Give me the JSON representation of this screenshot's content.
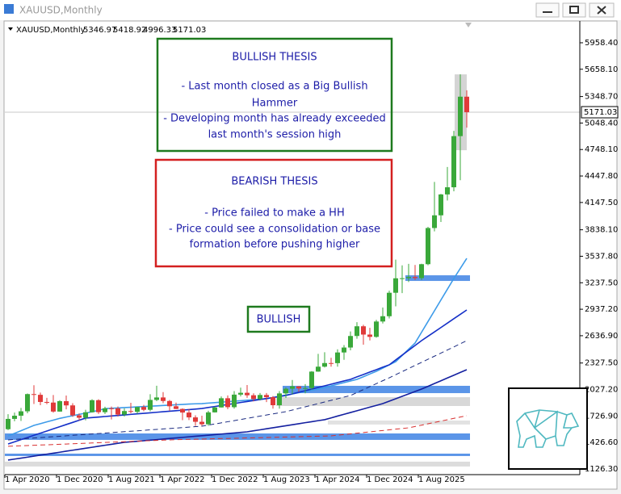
{
  "window_title": "XAUUSD,Monthly",
  "chart_data": {
    "type": "candlestick",
    "title": "XAUUSD,Monthly",
    "categories": [
      "1 Apr 2020",
      null,
      null,
      null,
      null,
      null,
      null,
      null,
      "1 Dec 2020",
      null,
      null,
      null,
      null,
      null,
      null,
      null,
      "1 Aug 2021",
      null,
      null,
      null,
      null,
      null,
      null,
      null,
      "1 Apr 2022",
      null,
      null,
      null,
      null,
      null,
      null,
      null,
      "1 Dec 2022",
      null,
      null,
      null,
      null,
      null,
      null,
      null,
      "1 Aug 2023",
      null,
      null,
      null,
      null,
      null,
      null,
      null,
      "1 Apr 2024",
      null,
      null,
      null,
      null,
      null,
      null,
      null,
      "1 Dec 2024",
      null,
      null,
      null,
      null,
      null,
      null,
      null,
      "1 Aug 2025",
      null,
      null,
      null,
      null,
      null,
      null,
      null
    ],
    "open": [
      1577,
      1694,
      1730,
      1780,
      1975,
      1967,
      1886,
      1879,
      1777,
      1895,
      1847,
      1734,
      1707,
      1769,
      1906,
      1770,
      1814,
      1813,
      1743,
      1783,
      1774,
      1829,
      1797,
      1909,
      1937,
      1897,
      1837,
      1807,
      1766,
      1711,
      1661,
      1633,
      1768,
      1824,
      1928,
      1827,
      1969,
      1990,
      1962,
      1919,
      1965,
      1940,
      1849,
      1983,
      2036,
      2063,
      2039,
      2044,
      2230,
      2286,
      2327,
      2326,
      2447,
      2503,
      2634,
      2744,
      2650,
      2624,
      2798,
      2858,
      3124,
      3288,
      3289,
      3303,
      3290,
      3448,
      3858,
      4002,
      4239,
      4320,
      4900,
      5346.97
    ],
    "high": [
      1747,
      1765,
      1818,
      1982,
      2075,
      1992,
      1933,
      1965,
      1906,
      1959,
      1872,
      1755,
      1798,
      1916,
      1917,
      1832,
      1834,
      1834,
      1814,
      1877,
      1831,
      1853,
      1974,
      2070,
      1998,
      1909,
      1879,
      1814,
      1807,
      1735,
      1730,
      1786,
      1833,
      1949,
      1960,
      2009,
      2048,
      2078,
      1984,
      1987,
      1987,
      1953,
      2009,
      2052,
      2135,
      2065,
      2088,
      2236,
      2431,
      2450,
      2387,
      2483,
      2531,
      2685,
      2790,
      2761,
      2726,
      2817,
      2956,
      3148,
      3500,
      3435,
      3452,
      3439,
      3453,
      3872,
      4381,
      4245,
      4550,
      4960,
      5600,
      5418.92
    ],
    "low": [
      1567,
      1667,
      1671,
      1757,
      1863,
      1849,
      1860,
      1764,
      1775,
      1802,
      1717,
      1677,
      1677,
      1766,
      1750,
      1750,
      1688,
      1721,
      1721,
      1758,
      1753,
      1780,
      1780,
      1895,
      1872,
      1786,
      1805,
      1680,
      1681,
      1615,
      1617,
      1616,
      1765,
      1823,
      1804,
      1810,
      1949,
      1932,
      1893,
      1903,
      1885,
      1810,
      1810,
      1931,
      1973,
      2001,
      1984,
      2024,
      2228,
      2277,
      2286,
      2286,
      2364,
      2471,
      2603,
      2536,
      2583,
      2614,
      2776,
      2833,
      2970,
      3120,
      3246,
      3268,
      3268,
      3436,
      3820,
      3927,
      4170,
      4274,
      4400,
      4996.33
    ],
    "close": [
      1694,
      1730,
      1780,
      1975,
      1967,
      1886,
      1879,
      1777,
      1895,
      1847,
      1734,
      1707,
      1769,
      1906,
      1770,
      1814,
      1813,
      1743,
      1783,
      1774,
      1829,
      1797,
      1909,
      1937,
      1897,
      1837,
      1807,
      1766,
      1711,
      1661,
      1633,
      1768,
      1824,
      1928,
      1827,
      1969,
      1990,
      1962,
      1919,
      1965,
      1940,
      1849,
      1983,
      2036,
      2063,
      2039,
      2044,
      2230,
      2286,
      2327,
      2326,
      2447,
      2503,
      2634,
      2744,
      2650,
      2624,
      2798,
      2858,
      3124,
      3288,
      3289,
      3303,
      3290,
      3448,
      3858,
      4002,
      4239,
      4320,
      4900,
      5346.97,
      5171.03
    ],
    "up_color": "#3aa83a",
    "down_color": "#e03a3a",
    "series": [
      {
        "color": "#3d9be9",
        "dash": false,
        "values": [
          1500,
          1530,
          1560,
          1590,
          1620,
          1640,
          1660,
          1680,
          1700,
          1715,
          1730,
          1745,
          1760,
          1775,
          1790,
          1810,
          1814,
          1818,
          1822,
          1826,
          1830,
          1834,
          1838,
          1842,
          1846,
          1850,
          1854,
          1858,
          1862,
          1865,
          1867,
          1873,
          1878,
          1884,
          1889,
          1895,
          1900,
          1906,
          1911,
          1917,
          1922,
          1936,
          1950,
          1964,
          1978,
          1991,
          2005,
          2019,
          2032,
          2050,
          2068,
          2087,
          2105,
          2124,
          2142,
          2172,
          2203,
          2233,
          2270,
          2306,
          2343,
          2413,
          2484,
          2554,
          2676,
          2798,
          2920,
          3042,
          3164,
          3286,
          3400,
          3514
        ]
      },
      {
        "color": "#1530c8",
        "dash": false,
        "values": [
          1410,
          1434,
          1459,
          1483,
          1508,
          1532,
          1556,
          1581,
          1605,
          1630,
          1654,
          1679,
          1703,
          1709,
          1715,
          1721,
          1727,
          1733,
          1739,
          1745,
          1751,
          1757,
          1763,
          1769,
          1775,
          1781,
          1787,
          1793,
          1799,
          1805,
          1812,
          1823,
          1834,
          1846,
          1857,
          1868,
          1880,
          1891,
          1902,
          1914,
          1925,
          1936,
          1948,
          1959,
          1977,
          1996,
          2014,
          2032,
          2051,
          2069,
          2087,
          2106,
          2124,
          2142,
          2170,
          2197,
          2225,
          2252,
          2280,
          2307,
          2362,
          2417,
          2471,
          2526,
          2581,
          2631,
          2680,
          2730,
          2780,
          2830,
          2879,
          2929
        ]
      },
      {
        "color": "#1420a0",
        "dash": false,
        "values": [
          1227,
          1238,
          1249,
          1260,
          1272,
          1283,
          1294,
          1305,
          1316,
          1328,
          1339,
          1350,
          1361,
          1372,
          1384,
          1395,
          1406,
          1417,
          1428,
          1434,
          1440,
          1447,
          1453,
          1459,
          1465,
          1472,
          1478,
          1484,
          1491,
          1497,
          1503,
          1509,
          1516,
          1522,
          1528,
          1534,
          1541,
          1547,
          1559,
          1570,
          1582,
          1593,
          1605,
          1616,
          1628,
          1639,
          1651,
          1662,
          1674,
          1685,
          1705,
          1726,
          1746,
          1766,
          1786,
          1807,
          1827,
          1847,
          1867,
          1895,
          1922,
          1950,
          1977,
          2005,
          2032,
          2063,
          2095,
          2126,
          2158,
          2189,
          2221,
          2252
        ]
      },
      {
        "color": "#1a2a80",
        "dash": true,
        "values": [
          1456,
          1461,
          1466,
          1471,
          1477,
          1482,
          1487,
          1492,
          1497,
          1502,
          1508,
          1513,
          1518,
          1523,
          1528,
          1533,
          1539,
          1544,
          1549,
          1554,
          1559,
          1564,
          1570,
          1575,
          1580,
          1585,
          1590,
          1595,
          1601,
          1606,
          1611,
          1624,
          1636,
          1649,
          1662,
          1674,
          1687,
          1700,
          1713,
          1725,
          1738,
          1751,
          1763,
          1776,
          1794,
          1813,
          1831,
          1849,
          1867,
          1886,
          1904,
          1922,
          1941,
          1959,
          1993,
          2026,
          2060,
          2093,
          2127,
          2160,
          2195,
          2230,
          2265,
          2300,
          2335,
          2370,
          2405,
          2440,
          2475,
          2510,
          2546,
          2581
        ]
      },
      {
        "color": "#d83030",
        "dash": true,
        "values": [
          1383,
          1386,
          1389,
          1392,
          1395,
          1398,
          1400,
          1403,
          1406,
          1409,
          1412,
          1415,
          1418,
          1421,
          1424,
          1427,
          1430,
          1433,
          1435,
          1438,
          1441,
          1444,
          1447,
          1450,
          1453,
          1456,
          1458,
          1460,
          1462,
          1463,
          1465,
          1467,
          1469,
          1471,
          1472,
          1474,
          1476,
          1478,
          1480,
          1481,
          1483,
          1485,
          1487,
          1489,
          1490,
          1492,
          1494,
          1496,
          1498,
          1499,
          1501,
          1509,
          1516,
          1524,
          1532,
          1539,
          1547,
          1555,
          1562,
          1570,
          1578,
          1585,
          1593,
          1608,
          1623,
          1639,
          1654,
          1669,
          1684,
          1700,
          1715,
          1730
        ]
      }
    ],
    "zones": [
      {
        "low": 3258,
        "high": 3322,
        "start": 62,
        "color": "#5b95e8"
      },
      {
        "low": 1986,
        "high": 2069,
        "start": 43,
        "color": "#5b95e8"
      },
      {
        "low": 1840,
        "high": 1940,
        "start": 42,
        "color": "#d8d8d8"
      },
      {
        "low": 1630,
        "high": 1675,
        "start": 50,
        "color": "#e2e2e2"
      },
      {
        "low": 1456,
        "high": 1529,
        "start": 0,
        "color": "#5b95e8"
      },
      {
        "low": 1273,
        "high": 1300,
        "start": 0,
        "color": "#5b95e8"
      },
      {
        "low": 1154,
        "high": 1209,
        "start": 0,
        "color": "#dcdcdc"
      }
    ],
    "highlight": [
      4740,
      5600
    ],
    "ylim": [
      1062,
      6187
    ],
    "yticks": [
      {
        "value": 1126.3,
        "label": "1126.30"
      },
      {
        "value": 1426.6,
        "label": "1426.60"
      },
      {
        "value": 1726.9,
        "label": "1726.90"
      },
      {
        "value": 2027.2,
        "label": "2027.20"
      },
      {
        "value": 2327.5,
        "label": "2327.50"
      },
      {
        "value": 2636.9,
        "label": "2636.90"
      },
      {
        "value": 2937.2,
        "label": "2937.20"
      },
      {
        "value": 3237.5,
        "label": "3237.50"
      },
      {
        "value": 3537.8,
        "label": "3537.80"
      },
      {
        "value": 3838.1,
        "label": "3838.10"
      },
      {
        "value": 4147.5,
        "label": "4147.50"
      },
      {
        "value": 4447.8,
        "label": "4447.80"
      },
      {
        "value": 4748.1,
        "label": "4748.10"
      },
      {
        "value": 5048.4,
        "label": "5048.40"
      },
      {
        "value": 5348.7,
        "label": "5348.70"
      },
      {
        "value": 5658.1,
        "label": "5658.10"
      },
      {
        "value": 5958.4,
        "label": "5958.40"
      }
    ],
    "annotations": [
      {
        "title": "BULLISH THESIS",
        "lines": [
          "- Last month closed as a Big Bullish",
          "Hammer",
          "- Developing month has already exceeded",
          "last month's session high"
        ]
      },
      {
        "title": "BEARISH THESIS",
        "lines": [
          "- Price failed to make a HH",
          "- Price could see a consolidation or base",
          "formation before pushing higher"
        ]
      },
      {
        "title": "BULLISH",
        "lines": []
      }
    ]
  }
}
